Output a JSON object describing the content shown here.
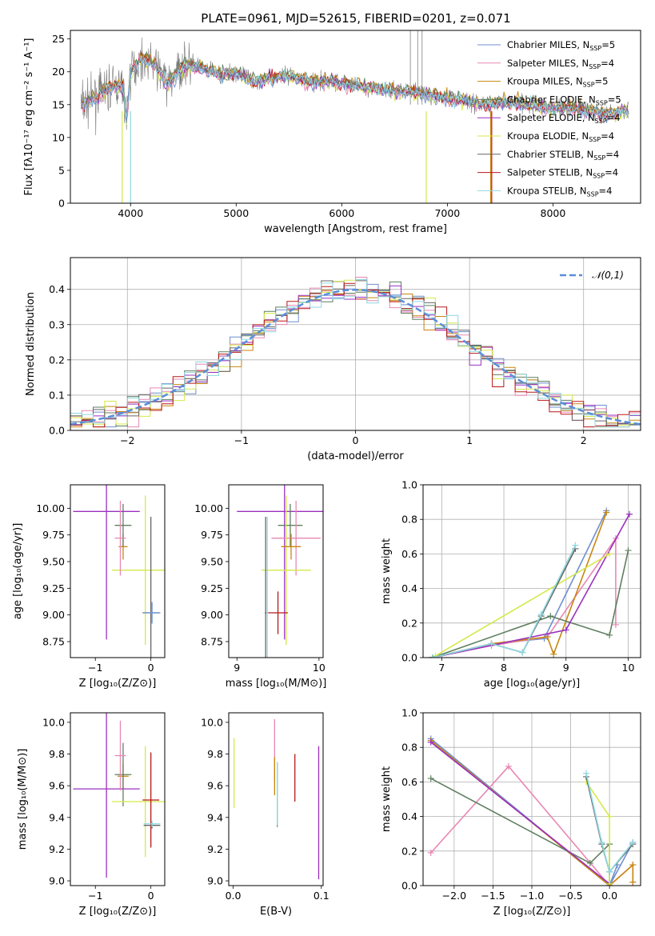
{
  "title": "PLATE=0961, MJD=52615, FIBERID=0201, z=0.071",
  "colors": [
    "#6f8fd1",
    "#e888b3",
    "#c8860f",
    "#5f7f5f",
    "#9b30c0",
    "#d4e94a",
    "#666666",
    "#b81818",
    "#8ed8e0"
  ],
  "chart_data": [
    {
      "id": "spectrum",
      "type": "line",
      "title": "PLATE=0961, MJD=52615, FIBERID=0201, z=0.071",
      "xlabel": "wavelength [Angstrom, rest frame]",
      "ylabel": "Flux [fλ10⁻¹⁷ erg cm⁻² s⁻¹ A⁻¹]",
      "xlim": [
        3430,
        8830
      ],
      "ylim": [
        0,
        26.3
      ],
      "xticks": [
        4000,
        5000,
        6000,
        7000,
        8000
      ],
      "yticks": [
        0,
        5,
        10,
        15,
        20,
        25
      ],
      "legend_position": "top-right",
      "legend": [
        "Chabrier MILES, N_SSP=5",
        "Salpeter MILES, N_SSP=4",
        "Kroupa MILES, N_SSP=5",
        "Chabrier ELODIE, N_SSP=5",
        "Salpeter ELODIE, N_SSP=4",
        "Kroupa ELODIE, N_SSP=4",
        "Chabrier STELIB, N_SSP=4",
        "Salpeter STELIB, N_SSP=4",
        "Kroupa STELIB, N_SSP=4"
      ],
      "observed_flux": {
        "x": [
          3550,
          3700,
          3850,
          3930,
          3960,
          4000,
          4100,
          4200,
          4300,
          4350,
          4500,
          4700,
          4861,
          5000,
          5175,
          5300,
          5500,
          5700,
          5900,
          6100,
          6300,
          6563,
          6700,
          6800,
          7000,
          7200,
          7400,
          7600,
          7800,
          8000,
          8200,
          8400,
          8500,
          8700
        ],
        "y": [
          15.0,
          16.5,
          18.0,
          17.5,
          12.5,
          20.0,
          22.0,
          21.5,
          19.5,
          18.0,
          21.0,
          20.5,
          19.5,
          20.0,
          18.5,
          19.0,
          19.5,
          18.5,
          18.5,
          18.0,
          17.5,
          17.0,
          17.0,
          16.5,
          16.0,
          15.5,
          15.0,
          15.5,
          15.0,
          14.5,
          14.5,
          14.0,
          13.5,
          14.0
        ]
      }
    },
    {
      "id": "residuals",
      "type": "line",
      "xlabel": "(data-model)/error",
      "ylabel": "Normed distribution",
      "xlim": [
        -2.5,
        2.5
      ],
      "ylim": [
        0,
        0.49
      ],
      "xticks": [
        -2,
        -1,
        0,
        1,
        2
      ],
      "yticks": [
        0.0,
        0.1,
        0.2,
        0.3,
        0.4
      ],
      "legend": [
        "𝒩(0,1)"
      ],
      "legend_position": "top-right",
      "grid": true
    },
    {
      "id": "age_vs_Z",
      "type": "scatter",
      "xlabel": "Z [log₁₀(Z/Z⊙)]",
      "ylabel": "age  [log₁₀(age/yr)]",
      "xlim": [
        -1.45,
        0.25
      ],
      "ylim": [
        8.6,
        10.22
      ],
      "xticks": [
        -1,
        0
      ],
      "yticks": [
        8.75,
        9.0,
        9.25,
        9.5,
        9.75,
        10.0
      ],
      "points": [
        {
          "x": -0.5,
          "y": 9.64,
          "xerr": 0.08,
          "yerr": 0.12,
          "c": 2
        },
        {
          "x": -0.5,
          "y": 9.84,
          "xerr": 0.15,
          "yerr": 0.2,
          "c": 3
        },
        {
          "x": -0.8,
          "y": 9.97,
          "xerr": 0.6,
          "yerr": 1.2,
          "c": 4
        },
        {
          "x": -0.1,
          "y": 9.42,
          "xerr": 0.6,
          "yerr": 0.7,
          "c": 5
        },
        {
          "x": -0.55,
          "y": 9.72,
          "xerr": 0.1,
          "yerr": 0.35,
          "c": 1
        },
        {
          "x": 0.0,
          "y": 9.02,
          "xerr": 0.15,
          "yerr": 0.9,
          "c": 6
        },
        {
          "x": 0.02,
          "y": 9.02,
          "xerr": 0.15,
          "yerr": 0.1,
          "c": 8
        },
        {
          "x": 0.02,
          "y": 9.02,
          "xerr": 0.15,
          "yerr": 0.1,
          "c": 0
        }
      ]
    },
    {
      "id": "age_vs_mass",
      "type": "scatter",
      "xlabel": "mass [log₁₀(M/M⊙)]",
      "ylabel": "",
      "xlim": [
        8.9,
        10.05
      ],
      "ylim": [
        8.6,
        10.22
      ],
      "xticks": [
        9,
        10
      ],
      "yticks": [
        8.75,
        9.0,
        9.25,
        9.5,
        9.75,
        10.0
      ],
      "points": [
        {
          "x": 9.58,
          "y": 9.97,
          "xerr": 0.58,
          "yerr": 1.2,
          "c": 4
        },
        {
          "x": 9.65,
          "y": 9.84,
          "xerr": 0.15,
          "yerr": 0.2,
          "c": 3
        },
        {
          "x": 9.72,
          "y": 9.72,
          "xerr": 0.3,
          "yerr": 0.35,
          "c": 1
        },
        {
          "x": 9.6,
          "y": 9.42,
          "xerr": 0.3,
          "yerr": 0.7,
          "c": 5
        },
        {
          "x": 9.66,
          "y": 9.64,
          "xerr": 0.12,
          "yerr": 0.12,
          "c": 2
        },
        {
          "x": 9.5,
          "y": 9.02,
          "xerr": 0.12,
          "yerr": 0.2,
          "c": 7
        },
        {
          "x": 9.35,
          "y": 9.02,
          "xerr": 0.01,
          "yerr": 0.9,
          "c": 6
        },
        {
          "x": 9.37,
          "y": 9.02,
          "xerr": 0.01,
          "yerr": 0.9,
          "c": 8
        }
      ]
    },
    {
      "id": "weight_vs_age",
      "type": "line",
      "xlabel": "age  [log₁₀(age/yr)]",
      "ylabel": "mass weight",
      "xlim": [
        6.7,
        10.2
      ],
      "ylim": [
        0,
        1.0
      ],
      "xticks": [
        7,
        8,
        9,
        10
      ],
      "yticks": [
        0.0,
        0.2,
        0.4,
        0.6,
        0.8,
        1.0
      ],
      "grid": true,
      "series": [
        {
          "c": 0,
          "x": [
            6.85,
            7.8,
            8.65,
            9.65
          ],
          "y": [
            0.0,
            0.08,
            0.11,
            0.85
          ]
        },
        {
          "c": 1,
          "x": [
            6.85,
            7.8,
            8.7,
            9.8,
            9.8
          ],
          "y": [
            0.0,
            0.07,
            0.12,
            0.69,
            0.19
          ]
        },
        {
          "c": 2,
          "x": [
            6.85,
            7.8,
            8.7,
            8.8,
            9.65
          ],
          "y": [
            0.0,
            0.08,
            0.12,
            0.02,
            0.84
          ]
        },
        {
          "c": 3,
          "x": [
            6.85,
            8.75,
            9.7,
            10.0
          ],
          "y": [
            0.0,
            0.24,
            0.13,
            0.62
          ]
        },
        {
          "c": 4,
          "x": [
            6.85,
            9.0,
            10.02
          ],
          "y": [
            0.0,
            0.16,
            0.83
          ]
        },
        {
          "c": 5,
          "x": [
            6.9,
            9.7
          ],
          "y": [
            0.01,
            0.6
          ]
        },
        {
          "c": 6,
          "x": [
            6.85,
            7.8,
            8.3,
            8.6,
            9.15
          ],
          "y": [
            0.0,
            0.08,
            0.03,
            0.24,
            0.63
          ]
        },
        {
          "c": 8,
          "x": [
            6.85,
            7.8,
            8.3,
            8.6,
            9.15
          ],
          "y": [
            0.0,
            0.08,
            0.03,
            0.25,
            0.65
          ]
        }
      ]
    },
    {
      "id": "mass_vs_Z",
      "type": "scatter",
      "xlabel": "Z [log₁₀(Z/Z⊙)]",
      "ylabel": "mass [log₁₀(M/M⊙)]",
      "xlim": [
        -1.45,
        0.25
      ],
      "ylim": [
        8.97,
        10.06
      ],
      "xticks": [
        -1,
        0
      ],
      "yticks": [
        9.0,
        9.2,
        9.4,
        9.6,
        9.8,
        10.0
      ],
      "points": [
        {
          "x": -0.5,
          "y": 9.66,
          "xerr": 0.1,
          "yerr": 0.08,
          "c": 2
        },
        {
          "x": -0.5,
          "y": 9.67,
          "xerr": 0.15,
          "yerr": 0.2,
          "c": 3
        },
        {
          "x": -0.8,
          "y": 9.58,
          "xerr": 0.6,
          "yerr": 0.56,
          "c": 4
        },
        {
          "x": -0.1,
          "y": 9.5,
          "xerr": 0.6,
          "yerr": 0.35,
          "c": 5
        },
        {
          "x": -0.55,
          "y": 9.79,
          "xerr": 0.1,
          "yerr": 0.22,
          "c": 1
        },
        {
          "x": 0.0,
          "y": 9.51,
          "xerr": 0.15,
          "yerr": 0.3,
          "c": 7
        },
        {
          "x": 0.02,
          "y": 9.35,
          "xerr": 0.15,
          "yerr": 0.02,
          "c": 6
        },
        {
          "x": 0.02,
          "y": 9.36,
          "xerr": 0.15,
          "yerr": 0.02,
          "c": 8
        }
      ]
    },
    {
      "id": "mass_vs_ebv",
      "type": "scatter",
      "xlabel": "E(B-V)",
      "ylabel": "",
      "xlim": [
        -0.005,
        0.102
      ],
      "ylim": [
        8.97,
        10.06
      ],
      "xticks": [
        0.0,
        0.1
      ],
      "yticks": [
        9.0,
        9.2,
        9.4,
        9.6,
        9.8,
        10.0
      ],
      "points": [
        {
          "x": 0.001,
          "y": 9.68,
          "xerr": 0,
          "yerr": 0.22,
          "c": 5
        },
        {
          "x": 0.047,
          "y": 9.82,
          "xerr": 0,
          "yerr": 0.2,
          "c": 1
        },
        {
          "x": 0.047,
          "y": 9.66,
          "xerr": 0,
          "yerr": 0.12,
          "c": 2
        },
        {
          "x": 0.05,
          "y": 9.54,
          "xerr": 0,
          "yerr": 0.2,
          "c": 3
        },
        {
          "x": 0.05,
          "y": 9.55,
          "xerr": 0,
          "yerr": 0.2,
          "c": 8
        },
        {
          "x": 0.07,
          "y": 9.65,
          "xerr": 0,
          "yerr": 0.15,
          "c": 7
        },
        {
          "x": 0.097,
          "y": 9.43,
          "xerr": 0,
          "yerr": 0.42,
          "c": 4
        }
      ]
    },
    {
      "id": "weight_vs_Z",
      "type": "line",
      "xlabel": "Z [log₁₀(Z/Z⊙)]",
      "ylabel": "mass weight",
      "xlim": [
        -2.4,
        0.4
      ],
      "ylim": [
        0,
        1.0
      ],
      "xticks": [
        -2.0,
        -1.5,
        -1.0,
        -0.5,
        0.0
      ],
      "yticks": [
        0.0,
        0.2,
        0.4,
        0.6,
        0.8,
        1.0
      ],
      "grid": true,
      "series": [
        {
          "c": 0,
          "x": [
            -2.3,
            0.0,
            0.1,
            0.0,
            0.3
          ],
          "y": [
            0.85,
            0.0,
            0.12,
            0.0,
            0.25
          ]
        },
        {
          "c": 1,
          "x": [
            -2.3,
            -1.3,
            0.0,
            0.3,
            0.3
          ],
          "y": [
            0.19,
            0.69,
            0.0,
            0.12,
            0.02
          ]
        },
        {
          "c": 2,
          "x": [
            -2.3,
            0.0,
            0.3,
            0.3
          ],
          "y": [
            0.84,
            0.0,
            0.12,
            0.02
          ]
        },
        {
          "c": 3,
          "x": [
            -2.3,
            -0.25,
            0.0,
            0.0
          ],
          "y": [
            0.62,
            0.13,
            0.24,
            0.01
          ]
        },
        {
          "c": 4,
          "x": [
            -2.3,
            0.0
          ],
          "y": [
            0.83,
            0.01
          ]
        },
        {
          "c": 5,
          "x": [
            -0.3,
            0.0,
            0.0
          ],
          "y": [
            0.6,
            0.4,
            0.01
          ]
        },
        {
          "c": 6,
          "x": [
            -0.3,
            -0.1,
            0.0,
            0.3
          ],
          "y": [
            0.63,
            0.24,
            0.08,
            0.24
          ]
        },
        {
          "c": 8,
          "x": [
            -0.3,
            -0.1,
            0.0,
            0.3
          ],
          "y": [
            0.65,
            0.25,
            0.08,
            0.25
          ]
        }
      ]
    }
  ]
}
